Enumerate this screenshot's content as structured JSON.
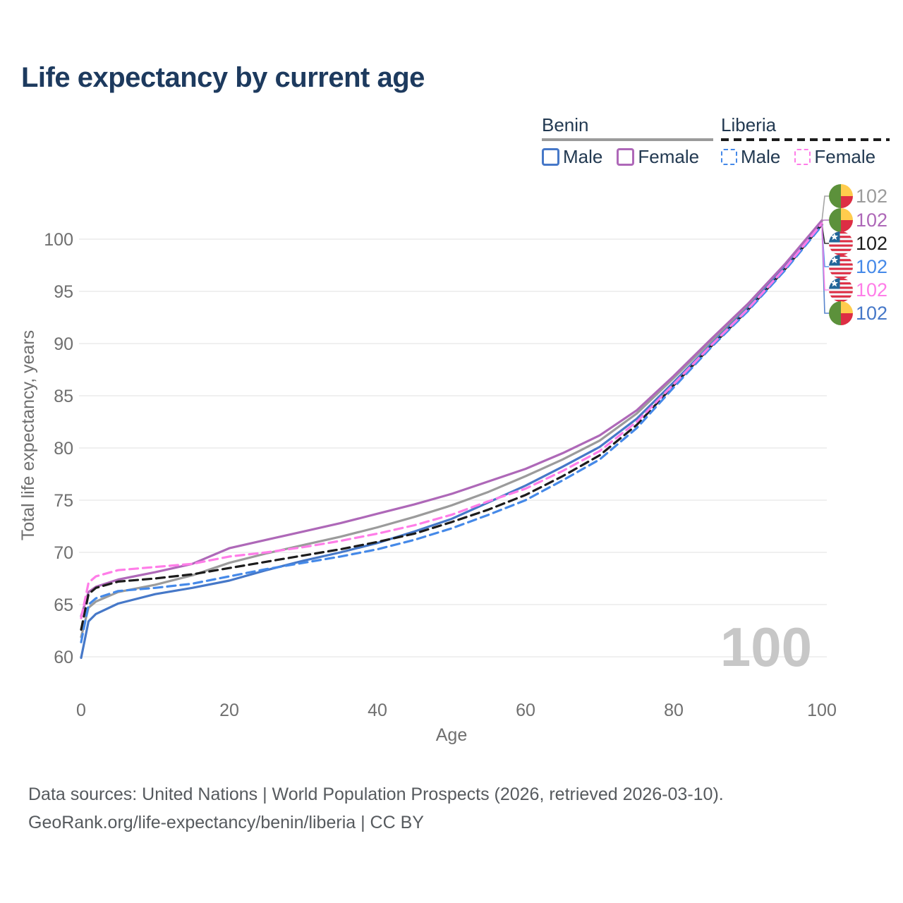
{
  "title": "Life expectancy by current age",
  "legend": {
    "groups": [
      {
        "label": "Benin",
        "line_style": "solid",
        "items": [
          {
            "label": "Male",
            "color": "#4678c8",
            "dashed": false
          },
          {
            "label": "Female",
            "color": "#ae68b8",
            "dashed": false
          }
        ]
      },
      {
        "label": "Liberia",
        "line_style": "dashed",
        "items": [
          {
            "label": "Male",
            "color": "#4589e8",
            "dashed": true
          },
          {
            "label": "Female",
            "color": "#ff7de8",
            "dashed": true
          }
        ]
      }
    ]
  },
  "chart_data": {
    "type": "line",
    "title": "Life expectancy by current age",
    "xlabel": "Age",
    "ylabel": "Total life expectancy, years",
    "xlim": [
      0,
      100
    ],
    "ylim": [
      57.5,
      103
    ],
    "xticks": [
      0,
      20,
      40,
      60,
      80,
      100
    ],
    "yticks": [
      60,
      65,
      70,
      75,
      80,
      85,
      90,
      95,
      100
    ],
    "grid": "horizontal-only",
    "legend_position": "top-right",
    "watermark": "100",
    "x": [
      0,
      1,
      2,
      5,
      10,
      15,
      20,
      25,
      30,
      35,
      40,
      45,
      50,
      55,
      60,
      65,
      70,
      75,
      80,
      85,
      90,
      95,
      100
    ],
    "series": [
      {
        "name": "Benin Total",
        "country": "Benin",
        "flag": "benin",
        "color": "#9b9b9b",
        "dashed": false,
        "row": 0,
        "end_label": "102",
        "values": [
          61.9,
          64.7,
          65.3,
          66.2,
          66.9,
          67.8,
          69.0,
          69.9,
          70.7,
          71.5,
          72.4,
          73.4,
          74.5,
          75.8,
          77.3,
          78.9,
          80.7,
          83.3,
          86.7,
          90.2,
          93.6,
          97.5,
          101.7
        ]
      },
      {
        "name": "Benin Male",
        "country": "Benin",
        "flag": "benin",
        "color": "#4678c8",
        "dashed": false,
        "row": 5,
        "end_label": "102",
        "values": [
          59.9,
          63.4,
          64.1,
          65.1,
          66.0,
          66.6,
          67.3,
          68.3,
          69.2,
          70.0,
          70.9,
          72.0,
          73.2,
          74.8,
          76.4,
          78.2,
          80.1,
          82.8,
          86.3,
          89.9,
          93.4,
          97.3,
          101.5
        ]
      },
      {
        "name": "Benin Female",
        "country": "Benin",
        "flag": "benin",
        "color": "#ae68b8",
        "dashed": false,
        "row": 1,
        "end_label": "102",
        "values": [
          63.9,
          66.2,
          66.7,
          67.4,
          68.1,
          68.9,
          70.4,
          71.2,
          72.0,
          72.8,
          73.7,
          74.6,
          75.6,
          76.8,
          78.0,
          79.5,
          81.2,
          83.6,
          86.9,
          90.4,
          93.8,
          97.6,
          101.8
        ]
      },
      {
        "name": "Liberia Total",
        "country": "Liberia",
        "flag": "liberia",
        "color": "#1c1c1c",
        "dashed": true,
        "row": 2,
        "end_label": "102",
        "values": [
          62.6,
          66.0,
          66.6,
          67.2,
          67.5,
          67.9,
          68.5,
          69.1,
          69.7,
          70.3,
          71.0,
          71.8,
          72.9,
          74.1,
          75.5,
          77.3,
          79.3,
          82.2,
          86.0,
          89.7,
          93.2,
          97.1,
          101.4
        ]
      },
      {
        "name": "Liberia Male",
        "country": "Liberia",
        "flag": "liberia",
        "color": "#4589e8",
        "dashed": true,
        "row": 3,
        "end_label": "102",
        "values": [
          61.4,
          65.0,
          65.6,
          66.3,
          66.6,
          67.0,
          67.7,
          68.4,
          69.0,
          69.6,
          70.3,
          71.2,
          72.3,
          73.6,
          75.0,
          76.9,
          78.9,
          81.9,
          85.8,
          89.6,
          93.1,
          97.0,
          101.3
        ]
      },
      {
        "name": "Liberia Female",
        "country": "Liberia",
        "flag": "liberia",
        "color": "#ff7de8",
        "dashed": true,
        "row": 4,
        "end_label": "102",
        "values": [
          63.7,
          67.1,
          67.7,
          68.3,
          68.6,
          68.9,
          69.6,
          70.0,
          70.5,
          71.1,
          71.8,
          72.6,
          73.6,
          74.9,
          76.1,
          77.8,
          79.7,
          82.5,
          86.1,
          89.8,
          93.3,
          97.2,
          101.5
        ]
      }
    ],
    "flag_colors": {
      "benin_green": "#5C913B",
      "benin_yellow": "#FFCC4D",
      "benin_red": "#DD2E44",
      "liberia_red": "#DD2E44",
      "liberia_white": "#F5F8FA",
      "liberia_blue": "#226699",
      "liberia_star": "#FFFFFF"
    }
  },
  "footer": {
    "line1": "Data sources: United Nations | World Population Prospects (2026, retrieved 2026-03-10).",
    "line2": "GeoRank.org/life-expectancy/benin/liberia | CC BY"
  }
}
